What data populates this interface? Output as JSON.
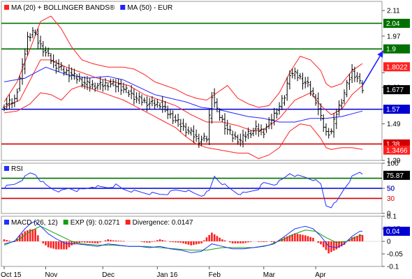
{
  "colors": {
    "price_bars": "#000000",
    "bollinger": "#ff2020",
    "ma20": "#ff2020",
    "ma50": "#2020ff",
    "support_resistance_green": "#007000",
    "support_blue": "#0000d0",
    "support_red": "#d00000",
    "rsi_line": "#2030ff",
    "macd_line": "#2030ff",
    "exp_line": "#10a010",
    "divergence": "#ff2020",
    "tag_green": "#007000",
    "tag_blue": "#0000d0",
    "tag_red": "#d00000",
    "tag_black": "#000000"
  },
  "chart_data": [
    {
      "type": "line",
      "panel": "price",
      "legend": [
        {
          "label": "MA (20) + BOLLINGER BANDS®",
          "color": "#ff2020"
        },
        {
          "label": "MA (50) - EUR",
          "color": "#2020ff"
        }
      ],
      "ylim": [
        1.29,
        2.16
      ],
      "yticks": [
        1.29,
        1.49,
        1.57,
        1.69,
        1.77,
        1.97,
        2.11
      ],
      "ytick_labels": [
        "1.29",
        "1.49",
        "",
        "1.69",
        "",
        "1.97",
        "2.11"
      ],
      "xaxis_labels": [
        "Oct 15",
        "Nov",
        "Dec",
        "Jan 16",
        "Feb",
        "Mar",
        "Apr"
      ],
      "xaxis_positions": [
        0,
        16,
        38,
        59,
        79,
        100,
        120
      ],
      "n_points": 139,
      "horizontal_lines": [
        {
          "value": 2.04,
          "color": "#007000",
          "label": "2.04"
        },
        {
          "value": 1.9,
          "color": "#007000",
          "label": "1.9"
        },
        {
          "value": 1.57,
          "color": "#0000d0",
          "label": "1.57"
        },
        {
          "value": 1.38,
          "color": "#d00000",
          "label": "1.38"
        }
      ],
      "value_tags": [
        {
          "value": 1.8022,
          "label": "1.8022",
          "color": "#ff2020"
        },
        {
          "value": 1.677,
          "label": "1.677",
          "color": "#000000"
        },
        {
          "value": 1.3466,
          "label": "1.3466",
          "color": "#ff2020"
        }
      ],
      "close_anchors": [
        [
          0,
          1.59
        ],
        [
          4,
          1.62
        ],
        [
          7,
          1.8
        ],
        [
          9,
          1.96
        ],
        [
          11,
          2.0
        ],
        [
          13,
          1.94
        ],
        [
          16,
          1.88
        ],
        [
          19,
          1.82
        ],
        [
          23,
          1.78
        ],
        [
          26,
          1.76
        ],
        [
          30,
          1.72
        ],
        [
          33,
          1.7
        ],
        [
          37,
          1.7
        ],
        [
          40,
          1.71
        ],
        [
          44,
          1.7
        ],
        [
          48,
          1.66
        ],
        [
          51,
          1.63
        ],
        [
          54,
          1.61
        ],
        [
          57,
          1.6
        ],
        [
          60,
          1.6
        ],
        [
          63,
          1.55
        ],
        [
          66,
          1.51
        ],
        [
          69,
          1.47
        ],
        [
          72,
          1.44
        ],
        [
          75,
          1.4
        ],
        [
          78,
          1.41
        ],
        [
          80,
          1.65
        ],
        [
          82,
          1.56
        ],
        [
          85,
          1.48
        ],
        [
          88,
          1.42
        ],
        [
          91,
          1.4
        ],
        [
          94,
          1.44
        ],
        [
          97,
          1.46
        ],
        [
          100,
          1.45
        ],
        [
          103,
          1.52
        ],
        [
          105,
          1.56
        ],
        [
          108,
          1.64
        ],
        [
          110,
          1.77
        ],
        [
          112,
          1.76
        ],
        [
          114,
          1.74
        ],
        [
          117,
          1.7
        ],
        [
          120,
          1.62
        ],
        [
          122,
          1.52
        ],
        [
          124,
          1.44
        ],
        [
          126,
          1.45
        ],
        [
          128,
          1.55
        ],
        [
          130,
          1.62
        ],
        [
          132,
          1.7
        ],
        [
          134,
          1.78
        ],
        [
          136,
          1.74
        ],
        [
          138,
          1.68
        ]
      ],
      "ma20_anchors": [
        [
          0,
          1.58
        ],
        [
          6,
          1.62
        ],
        [
          10,
          1.73
        ],
        [
          14,
          1.84
        ],
        [
          18,
          1.84
        ],
        [
          24,
          1.8
        ],
        [
          30,
          1.77
        ],
        [
          36,
          1.74
        ],
        [
          42,
          1.72
        ],
        [
          48,
          1.7
        ],
        [
          54,
          1.65
        ],
        [
          60,
          1.62
        ],
        [
          66,
          1.59
        ],
        [
          72,
          1.54
        ],
        [
          78,
          1.5
        ],
        [
          84,
          1.5
        ],
        [
          90,
          1.48
        ],
        [
          96,
          1.45
        ],
        [
          100,
          1.46
        ],
        [
          106,
          1.52
        ],
        [
          112,
          1.62
        ],
        [
          118,
          1.66
        ],
        [
          122,
          1.59
        ],
        [
          126,
          1.54
        ],
        [
          130,
          1.57
        ],
        [
          134,
          1.65
        ],
        [
          138,
          1.7
        ]
      ],
      "upper_band_anchors": [
        [
          0,
          1.61
        ],
        [
          5,
          1.72
        ],
        [
          10,
          1.9
        ],
        [
          14,
          2.05
        ],
        [
          18,
          2.08
        ],
        [
          22,
          2.01
        ],
        [
          26,
          1.91
        ],
        [
          30,
          1.84
        ],
        [
          34,
          1.82
        ],
        [
          40,
          1.8
        ],
        [
          46,
          1.8
        ],
        [
          50,
          1.79
        ],
        [
          54,
          1.76
        ],
        [
          58,
          1.72
        ],
        [
          62,
          1.7
        ],
        [
          66,
          1.68
        ],
        [
          70,
          1.65
        ],
        [
          74,
          1.63
        ],
        [
          78,
          1.62
        ],
        [
          82,
          1.66
        ],
        [
          86,
          1.7
        ],
        [
          90,
          1.63
        ],
        [
          94,
          1.6
        ],
        [
          98,
          1.58
        ],
        [
          102,
          1.59
        ],
        [
          106,
          1.66
        ],
        [
          110,
          1.77
        ],
        [
          114,
          1.86
        ],
        [
          118,
          1.84
        ],
        [
          122,
          1.78
        ],
        [
          124,
          1.71
        ],
        [
          126,
          1.69
        ],
        [
          130,
          1.71
        ],
        [
          134,
          1.78
        ],
        [
          138,
          1.82
        ]
      ],
      "lower_band_anchors": [
        [
          0,
          1.55
        ],
        [
          5,
          1.56
        ],
        [
          10,
          1.6
        ],
        [
          14,
          1.66
        ],
        [
          18,
          1.65
        ],
        [
          22,
          1.62
        ],
        [
          26,
          1.68
        ],
        [
          30,
          1.7
        ],
        [
          34,
          1.68
        ],
        [
          40,
          1.65
        ],
        [
          46,
          1.62
        ],
        [
          50,
          1.59
        ],
        [
          54,
          1.56
        ],
        [
          58,
          1.53
        ],
        [
          62,
          1.5
        ],
        [
          66,
          1.47
        ],
        [
          70,
          1.42
        ],
        [
          74,
          1.38
        ],
        [
          78,
          1.36
        ],
        [
          82,
          1.35
        ],
        [
          86,
          1.34
        ],
        [
          90,
          1.33
        ],
        [
          94,
          1.33
        ],
        [
          98,
          1.3
        ],
        [
          102,
          1.32
        ],
        [
          106,
          1.36
        ],
        [
          110,
          1.45
        ],
        [
          114,
          1.49
        ],
        [
          118,
          1.48
        ],
        [
          122,
          1.41
        ],
        [
          124,
          1.36
        ],
        [
          126,
          1.35
        ],
        [
          130,
          1.36
        ],
        [
          134,
          1.36
        ],
        [
          138,
          1.35
        ]
      ],
      "ma50_anchors": [
        [
          0,
          1.72
        ],
        [
          8,
          1.74
        ],
        [
          16,
          1.8
        ],
        [
          24,
          1.76
        ],
        [
          32,
          1.74
        ],
        [
          40,
          1.75
        ],
        [
          46,
          1.73
        ],
        [
          52,
          1.69
        ],
        [
          58,
          1.65
        ],
        [
          64,
          1.63
        ],
        [
          70,
          1.61
        ],
        [
          76,
          1.58
        ],
        [
          82,
          1.57
        ],
        [
          88,
          1.55
        ],
        [
          94,
          1.53
        ],
        [
          100,
          1.52
        ],
        [
          106,
          1.5
        ],
        [
          112,
          1.5
        ],
        [
          118,
          1.52
        ],
        [
          124,
          1.52
        ],
        [
          130,
          1.53
        ],
        [
          138,
          1.56
        ]
      ],
      "arrow": {
        "from": [
          138,
          1.7
        ],
        "to": [
          146,
          1.89
        ],
        "color": "#2020ff"
      }
    },
    {
      "type": "line",
      "panel": "rsi",
      "legend": [
        {
          "label": "RSI",
          "color": "#2030ff"
        }
      ],
      "ylim": [
        0,
        100
      ],
      "yticks": [
        0,
        50,
        100
      ],
      "ytick_labels": [
        "0",
        "50",
        "100"
      ],
      "horizontal_lines": [
        {
          "value": 70,
          "color": "#007000",
          "label": "70"
        },
        {
          "value": 50,
          "color": "#0000d0",
          "label": "50"
        },
        {
          "value": 30,
          "color": "#d00000",
          "label": "30"
        }
      ],
      "value_tags": [
        {
          "value": 75.87,
          "label": "75.87",
          "color": "#000000"
        }
      ],
      "anchors": [
        [
          0,
          52
        ],
        [
          4,
          58
        ],
        [
          8,
          72
        ],
        [
          10,
          80
        ],
        [
          12,
          78
        ],
        [
          14,
          66
        ],
        [
          16,
          56
        ],
        [
          19,
          48
        ],
        [
          22,
          44
        ],
        [
          25,
          50
        ],
        [
          28,
          46
        ],
        [
          31,
          48
        ],
        [
          34,
          54
        ],
        [
          37,
          52
        ],
        [
          40,
          52
        ],
        [
          43,
          56
        ],
        [
          46,
          48
        ],
        [
          50,
          44
        ],
        [
          53,
          42
        ],
        [
          56,
          40
        ],
        [
          60,
          38
        ],
        [
          63,
          40
        ],
        [
          66,
          46
        ],
        [
          70,
          46
        ],
        [
          73,
          40
        ],
        [
          76,
          36
        ],
        [
          79,
          44
        ],
        [
          81,
          74
        ],
        [
          83,
          64
        ],
        [
          86,
          52
        ],
        [
          90,
          40
        ],
        [
          93,
          40
        ],
        [
          96,
          46
        ],
        [
          98,
          50
        ],
        [
          100,
          60
        ],
        [
          104,
          58
        ],
        [
          107,
          66
        ],
        [
          110,
          80
        ],
        [
          113,
          74
        ],
        [
          116,
          72
        ],
        [
          119,
          68
        ],
        [
          122,
          58
        ],
        [
          124,
          16
        ],
        [
          126,
          14
        ],
        [
          128,
          22
        ],
        [
          131,
          50
        ],
        [
          134,
          72
        ],
        [
          137,
          82
        ],
        [
          139,
          76
        ]
      ]
    },
    {
      "type": "bar",
      "panel": "macd",
      "legend": [
        {
          "label": "MACD (26, 12)",
          "color": "#2030ff"
        },
        {
          "label": "EXP (9): 0.0271",
          "color": "#10a010"
        },
        {
          "label": "Divergence: 0.0147",
          "color": "#ff2020"
        }
      ],
      "ylim": [
        -0.1,
        0.1
      ],
      "yticks": [
        -0.1,
        -0.05,
        0,
        0.05,
        0.1
      ],
      "ytick_labels": [
        "-0.1",
        "-0.05",
        "0",
        "0.05",
        "0.1"
      ],
      "value_tags": [
        {
          "value": 0.04,
          "label": "0.04",
          "color": "#0000d0"
        }
      ],
      "macd_anchors": [
        [
          0,
          -0.01
        ],
        [
          4,
          0.0
        ],
        [
          8,
          0.05
        ],
        [
          10,
          0.07
        ],
        [
          12,
          0.08
        ],
        [
          14,
          0.06
        ],
        [
          17,
          0.03
        ],
        [
          20,
          0.01
        ],
        [
          24,
          -0.01
        ],
        [
          28,
          -0.01
        ],
        [
          32,
          -0.015
        ],
        [
          36,
          -0.02
        ],
        [
          40,
          -0.01
        ],
        [
          44,
          -0.015
        ],
        [
          48,
          -0.02
        ],
        [
          52,
          -0.02
        ],
        [
          56,
          -0.025
        ],
        [
          60,
          -0.02
        ],
        [
          64,
          -0.03
        ],
        [
          68,
          -0.035
        ],
        [
          72,
          -0.045
        ],
        [
          76,
          -0.04
        ],
        [
          80,
          -0.01
        ],
        [
          84,
          -0.02
        ],
        [
          88,
          -0.03
        ],
        [
          92,
          -0.03
        ],
        [
          96,
          -0.025
        ],
        [
          100,
          -0.02
        ],
        [
          104,
          -0.01
        ],
        [
          108,
          0.02
        ],
        [
          112,
          0.05
        ],
        [
          116,
          0.06
        ],
        [
          119,
          0.05
        ],
        [
          122,
          0.02
        ],
        [
          125,
          -0.02
        ],
        [
          128,
          -0.025
        ],
        [
          131,
          -0.01
        ],
        [
          134,
          0.02
        ],
        [
          137,
          0.04
        ],
        [
          139,
          0.04
        ]
      ],
      "exp_anchors": [
        [
          0,
          -0.015
        ],
        [
          6,
          0.01
        ],
        [
          10,
          0.04
        ],
        [
          14,
          0.06
        ],
        [
          18,
          0.04
        ],
        [
          22,
          0.02
        ],
        [
          26,
          0.0
        ],
        [
          30,
          -0.01
        ],
        [
          36,
          -0.015
        ],
        [
          42,
          -0.015
        ],
        [
          48,
          -0.02
        ],
        [
          54,
          -0.02
        ],
        [
          60,
          -0.025
        ],
        [
          66,
          -0.03
        ],
        [
          72,
          -0.035
        ],
        [
          78,
          -0.035
        ],
        [
          84,
          -0.025
        ],
        [
          90,
          -0.025
        ],
        [
          96,
          -0.025
        ],
        [
          102,
          -0.015
        ],
        [
          108,
          0.01
        ],
        [
          112,
          0.03
        ],
        [
          116,
          0.045
        ],
        [
          120,
          0.04
        ],
        [
          124,
          0.015
        ],
        [
          128,
          -0.005
        ],
        [
          132,
          0.0
        ],
        [
          136,
          0.02
        ],
        [
          139,
          0.027
        ]
      ]
    }
  ]
}
